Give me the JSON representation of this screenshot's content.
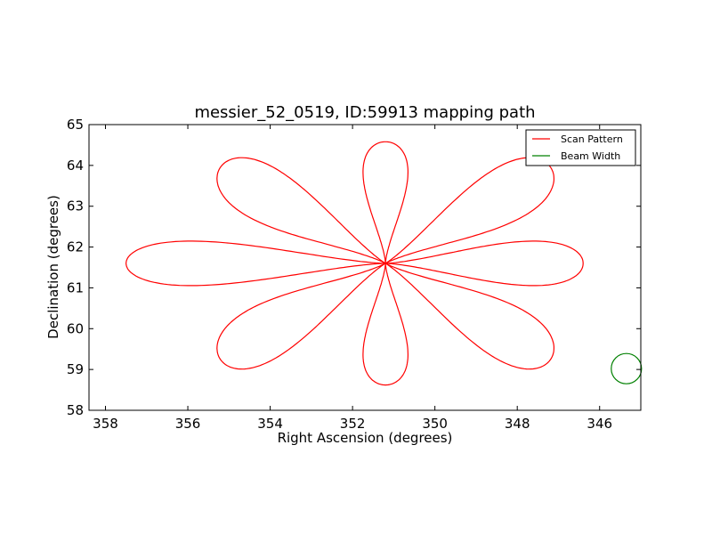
{
  "chart_data": {
    "type": "line",
    "title": "messier_52_0519, ID:59913 mapping path",
    "xlabel": "Right Ascension (degrees)",
    "ylabel": "Declination (degrees)",
    "xlim": [
      358.4,
      345.0
    ],
    "ylim": [
      58,
      65
    ],
    "x_inverted": true,
    "xticks": [
      358,
      356,
      354,
      352,
      350,
      348,
      346
    ],
    "yticks": [
      58,
      59,
      60,
      61,
      62,
      63,
      64,
      65
    ],
    "legend_position": "top-right",
    "center": {
      "ra": 351.2,
      "dec": 61.6
    },
    "petals": [
      {
        "angle_deg": 0,
        "length": 4.8,
        "half_width": 0.42
      },
      {
        "angle_deg": 30,
        "length": 4.65,
        "half_width": 0.52
      },
      {
        "angle_deg": 90,
        "length": 2.98,
        "half_width": 0.42
      },
      {
        "angle_deg": 150,
        "length": 4.65,
        "half_width": 0.52
      },
      {
        "angle_deg": 180,
        "length": 6.3,
        "half_width": 0.42
      },
      {
        "angle_deg": 210,
        "length": 4.65,
        "half_width": 0.52
      },
      {
        "angle_deg": 270,
        "length": 2.98,
        "half_width": 0.42
      },
      {
        "angle_deg": 330,
        "length": 4.65,
        "half_width": 0.52
      }
    ],
    "series": [
      {
        "name": "Scan Pattern",
        "color": "#ff0000",
        "kind": "path"
      },
      {
        "name": "Beam Width",
        "color": "#008000",
        "kind": "circle",
        "center": {
          "ra": 345.35,
          "dec": 59.02
        },
        "radius": 0.37
      }
    ]
  }
}
